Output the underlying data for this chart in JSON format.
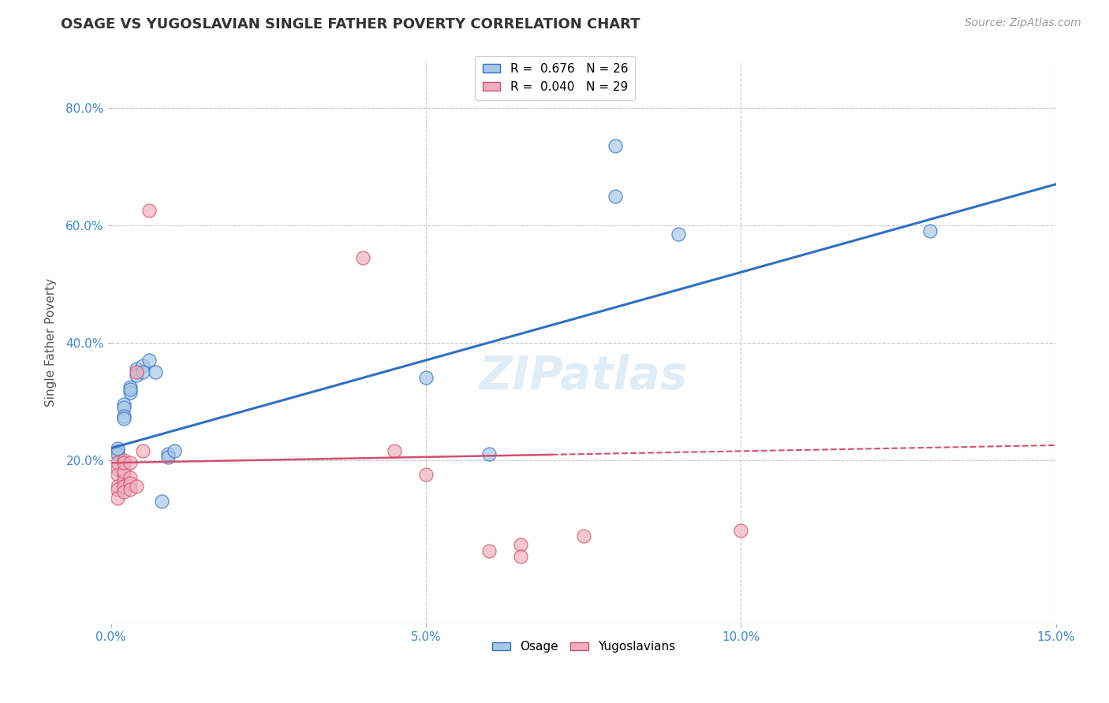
{
  "title": "OSAGE VS YUGOSLAVIAN SINGLE FATHER POVERTY CORRELATION CHART",
  "source": "Source: ZipAtlas.com",
  "ylabel": "Single Father Poverty",
  "watermark": "ZIPatlas",
  "xlim": [
    0.0,
    0.15
  ],
  "ylim": [
    -0.08,
    0.88
  ],
  "xticks": [
    0.0,
    0.05,
    0.1,
    0.15
  ],
  "xtick_labels": [
    "0.0%",
    "5.0%",
    "10.0%",
    "15.0%"
  ],
  "yticks": [
    0.2,
    0.4,
    0.6,
    0.8
  ],
  "ytick_labels": [
    "20.0%",
    "40.0%",
    "60.0%",
    "80.0%"
  ],
  "osage_R": 0.676,
  "osage_N": 26,
  "yugo_R": 0.04,
  "yugo_N": 29,
  "osage_color": "#a8c8e8",
  "yugo_color": "#f0b0c0",
  "line_osage_color": "#3070c0",
  "line_yugo_color": "#d05070",
  "background_color": "#ffffff",
  "grid_color": "#c8c8c8",
  "osage_points": [
    [
      0.001,
      0.215
    ],
    [
      0.001,
      0.21
    ],
    [
      0.001,
      0.22
    ],
    [
      0.002,
      0.295
    ],
    [
      0.002,
      0.29
    ],
    [
      0.002,
      0.275
    ],
    [
      0.002,
      0.27
    ],
    [
      0.003,
      0.325
    ],
    [
      0.003,
      0.315
    ],
    [
      0.003,
      0.32
    ],
    [
      0.004,
      0.355
    ],
    [
      0.004,
      0.345
    ],
    [
      0.005,
      0.36
    ],
    [
      0.005,
      0.35
    ],
    [
      0.006,
      0.37
    ],
    [
      0.007,
      0.35
    ],
    [
      0.008,
      0.13
    ],
    [
      0.009,
      0.21
    ],
    [
      0.009,
      0.205
    ],
    [
      0.01,
      0.215
    ],
    [
      0.05,
      0.34
    ],
    [
      0.06,
      0.21
    ],
    [
      0.08,
      0.735
    ],
    [
      0.08,
      0.65
    ],
    [
      0.09,
      0.585
    ],
    [
      0.13,
      0.59
    ]
  ],
  "yugo_points": [
    [
      0.001,
      0.185
    ],
    [
      0.001,
      0.175
    ],
    [
      0.001,
      0.155
    ],
    [
      0.001,
      0.15
    ],
    [
      0.001,
      0.135
    ],
    [
      0.001,
      0.195
    ],
    [
      0.002,
      0.175
    ],
    [
      0.002,
      0.165
    ],
    [
      0.002,
      0.155
    ],
    [
      0.002,
      0.145
    ],
    [
      0.002,
      0.2
    ],
    [
      0.002,
      0.18
    ],
    [
      0.002,
      0.195
    ],
    [
      0.003,
      0.17
    ],
    [
      0.003,
      0.16
    ],
    [
      0.003,
      0.15
    ],
    [
      0.003,
      0.195
    ],
    [
      0.004,
      0.35
    ],
    [
      0.004,
      0.155
    ],
    [
      0.005,
      0.215
    ],
    [
      0.006,
      0.625
    ],
    [
      0.04,
      0.545
    ],
    [
      0.045,
      0.215
    ],
    [
      0.05,
      0.175
    ],
    [
      0.06,
      0.045
    ],
    [
      0.065,
      0.055
    ],
    [
      0.065,
      0.035
    ],
    [
      0.075,
      0.07
    ],
    [
      0.1,
      0.08
    ]
  ],
  "title_fontsize": 13,
  "axis_label_fontsize": 11,
  "tick_fontsize": 11,
  "legend_fontsize": 11,
  "watermark_fontsize": 42,
  "watermark_color": "#c8dff0",
  "watermark_alpha": 0.55,
  "source_fontsize": 10,
  "title_color": "#333333",
  "tick_color": "#4488cc",
  "ylabel_color": "#555555",
  "osage_line_intercept": 0.22,
  "osage_line_slope": 3.0,
  "yugo_line_intercept": 0.195,
  "yugo_line_slope": 0.2
}
